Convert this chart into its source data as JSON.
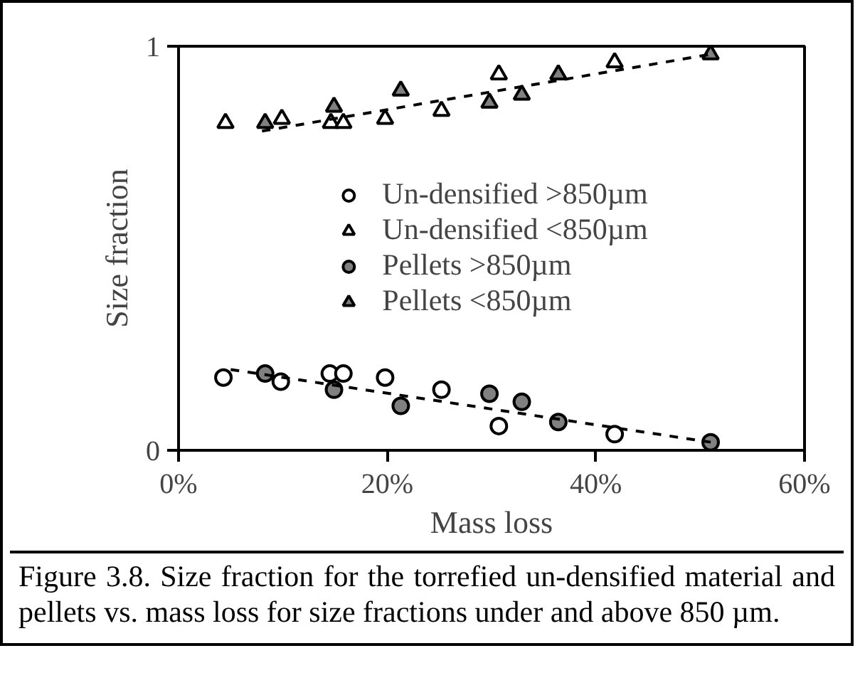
{
  "chart_data": {
    "type": "scatter",
    "xlabel": "Mass loss",
    "ylabel": "Size fraction",
    "xlim": [
      0,
      0.6
    ],
    "xticks": [
      {
        "value": 0,
        "label": "0%"
      },
      {
        "value": 0.2,
        "label": "20%"
      },
      {
        "value": 0.4,
        "label": "40%"
      },
      {
        "value": 0.6,
        "label": "60%"
      }
    ],
    "ylim": [
      0,
      1
    ],
    "yticks": [
      0,
      1
    ],
    "grid": false,
    "legend": "center",
    "annotations": [
      "Figure 3.8. Size fraction for the torrefied un-densified material and pellets vs. mass loss for size fractions under and above 850 µm."
    ],
    "series": [
      {
        "name": "Un-densified >850µm",
        "marker": "circle",
        "color": "#ffffff",
        "x": [
          0.043,
          0.098,
          0.145,
          0.158,
          0.198,
          0.252,
          0.307,
          0.418
        ],
        "values": [
          0.18,
          0.17,
          0.19,
          0.19,
          0.18,
          0.15,
          0.06,
          0.04
        ]
      },
      {
        "name": "Un-densified <850µm",
        "marker": "triangle",
        "color": "#ffffff",
        "x": [
          0.045,
          0.099,
          0.146,
          0.158,
          0.198,
          0.252,
          0.307,
          0.418
        ],
        "values": [
          0.81,
          0.82,
          0.81,
          0.81,
          0.82,
          0.84,
          0.93,
          0.96
        ]
      },
      {
        "name": "Pellets >850µm",
        "marker": "circle",
        "color": "#808080",
        "x": [
          0.083,
          0.149,
          0.213,
          0.298,
          0.329,
          0.364,
          0.51
        ],
        "values": [
          0.19,
          0.15,
          0.11,
          0.14,
          0.12,
          0.07,
          0.02
        ]
      },
      {
        "name": "Pellets <850µm",
        "marker": "triangle",
        "color": "#808080",
        "x": [
          0.083,
          0.149,
          0.213,
          0.298,
          0.329,
          0.364,
          0.51
        ],
        "values": [
          0.81,
          0.85,
          0.89,
          0.86,
          0.88,
          0.93,
          0.98
        ]
      },
      {
        "type": "line",
        "line_style": "dashed",
        "marker": "none",
        "color": "#000000",
        "x": [
          0.08,
          0.51
        ],
        "values": [
          0.79,
          0.98
        ]
      },
      {
        "type": "line",
        "line_style": "dashed",
        "marker": "none",
        "color": "#000000",
        "x": [
          0.05,
          0.51
        ],
        "values": [
          0.2,
          0.02
        ]
      }
    ]
  }
}
